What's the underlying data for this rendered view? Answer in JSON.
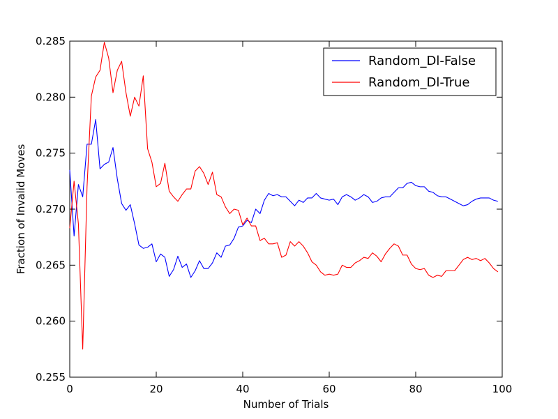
{
  "chart_data": {
    "type": "line",
    "title": "",
    "xlabel": "Number of Trials",
    "ylabel": "Fraction of Invalid Moves",
    "xlim": [
      0,
      100
    ],
    "ylim": [
      0.255,
      0.285
    ],
    "x_ticks": [
      0,
      20,
      40,
      60,
      80,
      100
    ],
    "x_tick_labels": [
      "0",
      "20",
      "40",
      "60",
      "80",
      "100"
    ],
    "y_ticks": [
      0.255,
      0.26,
      0.265,
      0.27,
      0.275,
      0.28,
      0.285
    ],
    "y_tick_labels": [
      "0.255",
      "0.260",
      "0.265",
      "0.270",
      "0.275",
      "0.280",
      "0.285"
    ],
    "grid": false,
    "legend_position": "top-right",
    "series": [
      {
        "name": "Random_Dl-False",
        "color": "#0000ff",
        "values": [
          0.2735,
          0.2676,
          0.2722,
          0.2711,
          0.2758,
          0.2758,
          0.278,
          0.2736,
          0.274,
          0.2742,
          0.2755,
          0.2727,
          0.2705,
          0.2699,
          0.2704,
          0.2687,
          0.2668,
          0.2665,
          0.2666,
          0.2669,
          0.2653,
          0.266,
          0.2657,
          0.264,
          0.2646,
          0.2658,
          0.2648,
          0.2651,
          0.2639,
          0.2645,
          0.2654,
          0.2647,
          0.2647,
          0.2652,
          0.2661,
          0.2657,
          0.2667,
          0.2668,
          0.2674,
          0.2684,
          0.2685,
          0.269,
          0.2688,
          0.27,
          0.2696,
          0.2708,
          0.2714,
          0.2712,
          0.2713,
          0.2711,
          0.2711,
          0.2707,
          0.2703,
          0.2708,
          0.2706,
          0.271,
          0.271,
          0.2714,
          0.271,
          0.2709,
          0.2708,
          0.2709,
          0.2704,
          0.2711,
          0.2713,
          0.2711,
          0.2708,
          0.271,
          0.2713,
          0.2711,
          0.2706,
          0.2707,
          0.271,
          0.2711,
          0.2711,
          0.2715,
          0.2719,
          0.2719,
          0.2723,
          0.2724,
          0.2721,
          0.272,
          0.272,
          0.2716,
          0.2715,
          0.2712,
          0.2711,
          0.2711,
          0.2709,
          0.2707,
          0.2705,
          0.2703,
          0.2704,
          0.2707,
          0.2709,
          0.271,
          0.271,
          0.271,
          0.2708,
          0.2707
        ]
      },
      {
        "name": "Random_Dl-True",
        "color": "#ff0000",
        "values": [
          0.2683,
          0.2725,
          0.2687,
          0.2575,
          0.272,
          0.2801,
          0.2818,
          0.2824,
          0.2849,
          0.2835,
          0.2804,
          0.2824,
          0.2832,
          0.2804,
          0.2783,
          0.28,
          0.2792,
          0.2819,
          0.2754,
          0.2742,
          0.272,
          0.2723,
          0.2741,
          0.2716,
          0.2711,
          0.2707,
          0.2713,
          0.2718,
          0.2718,
          0.2734,
          0.2738,
          0.2732,
          0.2722,
          0.2733,
          0.2713,
          0.2711,
          0.2702,
          0.2696,
          0.27,
          0.2699,
          0.2686,
          0.2692,
          0.2685,
          0.2685,
          0.2672,
          0.2674,
          0.2669,
          0.2669,
          0.267,
          0.2657,
          0.2659,
          0.2671,
          0.2667,
          0.2671,
          0.2667,
          0.2661,
          0.2653,
          0.265,
          0.2644,
          0.2641,
          0.2642,
          0.2641,
          0.2642,
          0.265,
          0.2648,
          0.2648,
          0.2652,
          0.2654,
          0.2657,
          0.2656,
          0.2661,
          0.2658,
          0.2653,
          0.266,
          0.2665,
          0.2669,
          0.2667,
          0.2659,
          0.2659,
          0.2651,
          0.2647,
          0.2646,
          0.2647,
          0.2641,
          0.2639,
          0.2641,
          0.264,
          0.2645,
          0.2645,
          0.2645,
          0.265,
          0.2655,
          0.2657,
          0.2655,
          0.2656,
          0.2654,
          0.2656,
          0.2652,
          0.2647,
          0.2644
        ]
      }
    ]
  }
}
